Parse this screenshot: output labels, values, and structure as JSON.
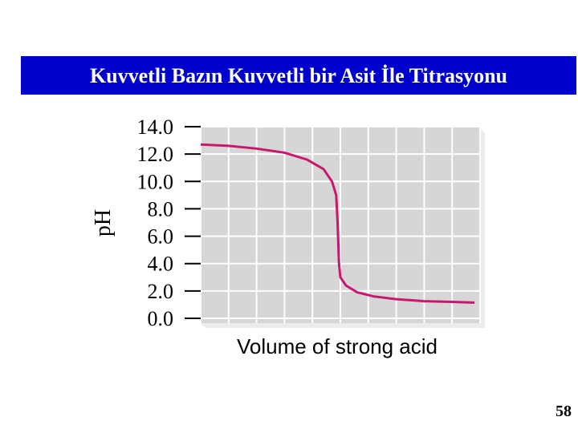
{
  "header": {
    "title": "Kuvvetli Bazın Kuvvetli bir Asit İle Titrasyonu"
  },
  "chart_data": {
    "type": "line",
    "ylabel": "pH",
    "xlabel": "Volume of strong acid",
    "x": [
      0,
      1,
      2,
      3,
      3.8,
      4.4,
      4.7,
      4.85,
      4.9,
      4.95,
      5.0,
      5.2,
      5.6,
      6.2,
      7,
      8,
      9,
      9.8
    ],
    "series": [
      {
        "color": "#c8186e",
        "values": [
          12.7,
          12.6,
          12.4,
          12.1,
          11.6,
          10.9,
          10.0,
          9.0,
          7.0,
          4.0,
          3.0,
          2.4,
          1.9,
          1.6,
          1.4,
          1.25,
          1.2,
          1.15
        ]
      }
    ],
    "xlim": [
      0,
      10
    ],
    "xticks": [
      0,
      1,
      2,
      3,
      4,
      5,
      6,
      7,
      8,
      9,
      10
    ],
    "ylim": [
      0,
      14
    ],
    "yticks": [
      {
        "value": 0,
        "label": "0.0"
      },
      {
        "value": 2,
        "label": "2.0"
      },
      {
        "value": 4,
        "label": "4.0"
      },
      {
        "value": 6,
        "label": "6.0"
      },
      {
        "value": 8,
        "label": "8.0"
      },
      {
        "value": 10,
        "label": "10.0"
      },
      {
        "value": 12,
        "label": "12.0"
      },
      {
        "value": 14,
        "label": "14.0"
      }
    ],
    "grid": true
  },
  "page_number": "58"
}
